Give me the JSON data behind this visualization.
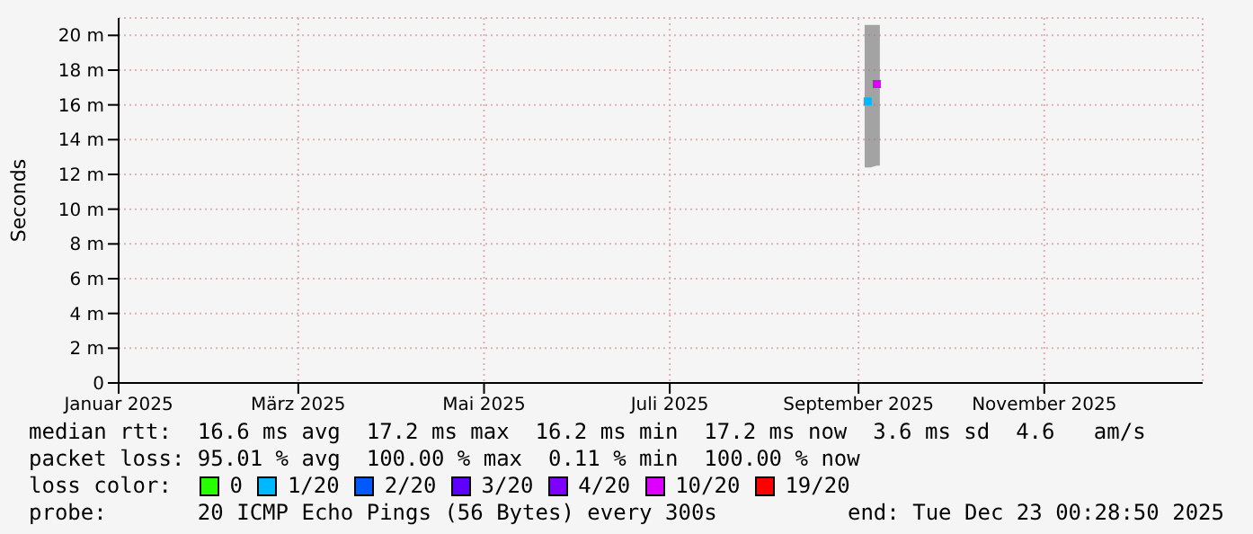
{
  "chart_data": {
    "type": "scatter",
    "ylabel": "Seconds",
    "xlim": [
      "2025-01-01",
      "2025-12-23T00:28"
    ],
    "xticks": [
      {
        "value": "2025-01-01",
        "label": "Januar 2025"
      },
      {
        "value": "2025-03-01",
        "label": "März 2025"
      },
      {
        "value": "2025-05-01",
        "label": "Mai 2025"
      },
      {
        "value": "2025-07-01",
        "label": "Juli 2025"
      },
      {
        "value": "2025-09-01",
        "label": "September 2025"
      },
      {
        "value": "2025-11-01",
        "label": "November 2025"
      }
    ],
    "ylim": [
      0,
      21
    ],
    "yticks": [
      0,
      {
        "value": 2,
        "label": "2 m"
      },
      {
        "value": 4,
        "label": "4 m"
      },
      {
        "value": 6,
        "label": "6 m"
      },
      {
        "value": 8,
        "label": "8 m"
      },
      {
        "value": 10,
        "label": "10 m"
      },
      {
        "value": 12,
        "label": "12 m"
      },
      {
        "value": 14,
        "label": "14 m"
      },
      {
        "value": 16,
        "label": "16 m"
      },
      {
        "value": 18,
        "label": "18 m"
      },
      {
        "value": 20,
        "label": "20 m"
      }
    ],
    "grid": true,
    "marker": "square",
    "legend": "bottom",
    "legend_title": "loss color:",
    "series": [
      {
        "type": "area",
        "color": "#808080",
        "x": [
          "2025-09-03",
          "2025-09-05",
          "2025-09-07",
          "2025-09-08"
        ],
        "values": [
          null,
          null,
          null,
          null
        ],
        "lower": [
          12.4,
          12.4,
          12.5,
          12.5
        ],
        "upper": [
          20.6,
          20.6,
          20.6,
          20.6
        ]
      },
      {
        "name": "0",
        "color": "#26ff00"
      },
      {
        "name": "1/20",
        "color": "#00b8ff",
        "x": [
          "2025-09-04"
        ],
        "values": [
          16.2
        ]
      },
      {
        "name": "2/20",
        "color": "#0059ff"
      },
      {
        "name": "3/20",
        "color": "#5e00ff"
      },
      {
        "name": "4/20",
        "color": "#7e00ff"
      },
      {
        "name": "10/20",
        "color": "#dd00ff",
        "x": [
          "2025-09-07"
        ],
        "values": [
          17.2
        ]
      },
      {
        "name": "19/20",
        "color": "#ff0000"
      }
    ],
    "annotations": [
      "median rtt:  16.6 ms avg  17.2 ms max  16.2 ms min  17.2 ms now  3.6 ms sd  4.6   am/s",
      "packet loss: 95.01 % avg  100.00 % max  0.11 % min  100.00 % now",
      "probe:       20 ICMP Echo Pings (56 Bytes) every 300s",
      "end: Tue Dec 23 00:28:50 2025"
    ]
  }
}
